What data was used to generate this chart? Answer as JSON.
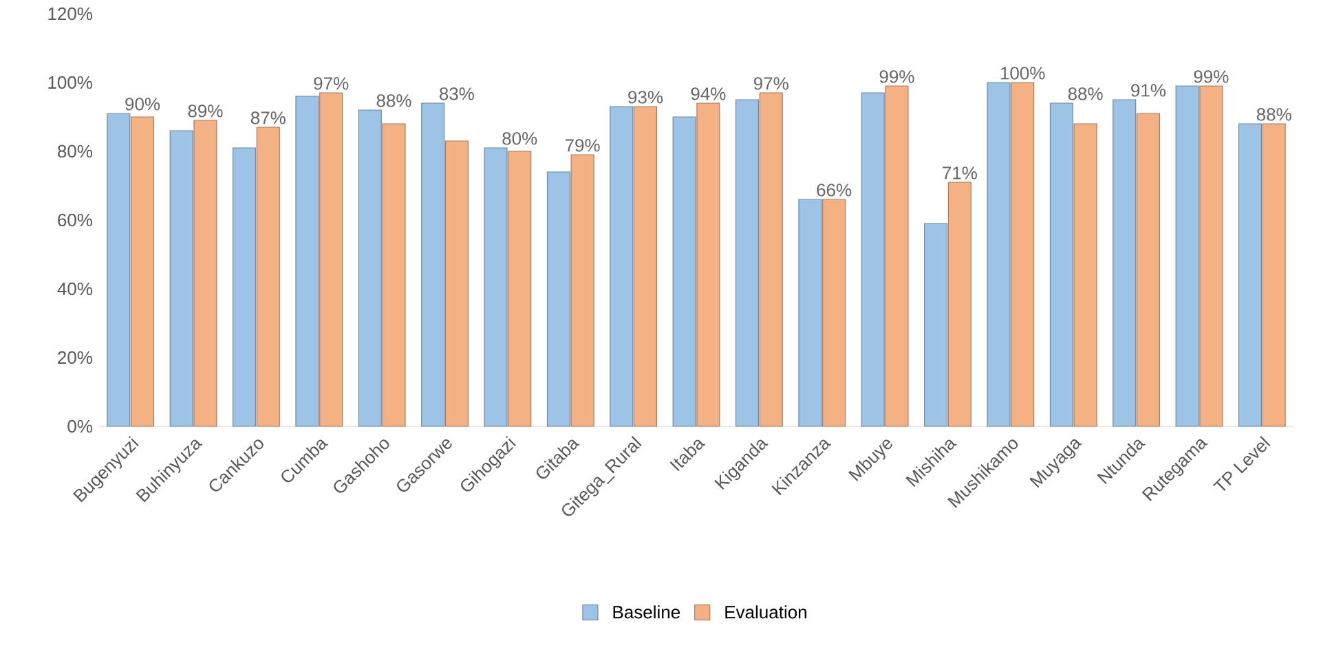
{
  "chart_data": {
    "type": "bar",
    "categories": [
      "Bugenyuzi",
      "Buhinyuza",
      "Cankuzo",
      "Cumba",
      "Gashoho",
      "Gasorwe",
      "Gihogazi",
      "Gitaba",
      "Gitega_Rural",
      "Itaba",
      "Kiganda",
      "Kinzanza",
      "Mbuye",
      "Mishiha",
      "Mushikamo",
      "Muyaga",
      "Ntunda",
      "Rutegama",
      "TP Level"
    ],
    "series": [
      {
        "name": "Baseline",
        "color": "#9dc3e6",
        "values": [
          91,
          86,
          81,
          96,
          92,
          94,
          81,
          74,
          93,
          90,
          95,
          66,
          97,
          59,
          100,
          94,
          95,
          99,
          88
        ]
      },
      {
        "name": "Evaluation",
        "color": "#f4b183",
        "values": [
          90,
          89,
          87,
          97,
          88,
          83,
          80,
          79,
          93,
          94,
          97,
          66,
          99,
          71,
          100,
          88,
          91,
          99,
          88
        ],
        "value_labels": [
          "90%",
          "89%",
          "87%",
          "97%",
          "88%",
          "83%",
          "80%",
          "79%",
          "93%",
          "94%",
          "97%",
          "66%",
          "99%",
          "71%",
          "100%",
          "88%",
          "91%",
          "99%",
          "88%"
        ]
      }
    ],
    "ylim": [
      0,
      120
    ],
    "yticks": [
      {
        "value": 0,
        "label": "0%"
      },
      {
        "value": 20,
        "label": "20%"
      },
      {
        "value": 40,
        "label": "40%"
      },
      {
        "value": 60,
        "label": "60%"
      },
      {
        "value": 80,
        "label": "80%"
      },
      {
        "value": 100,
        "label": "100%"
      },
      {
        "value": 120,
        "label": "120%"
      }
    ],
    "grid": false,
    "legend": "bottom"
  }
}
